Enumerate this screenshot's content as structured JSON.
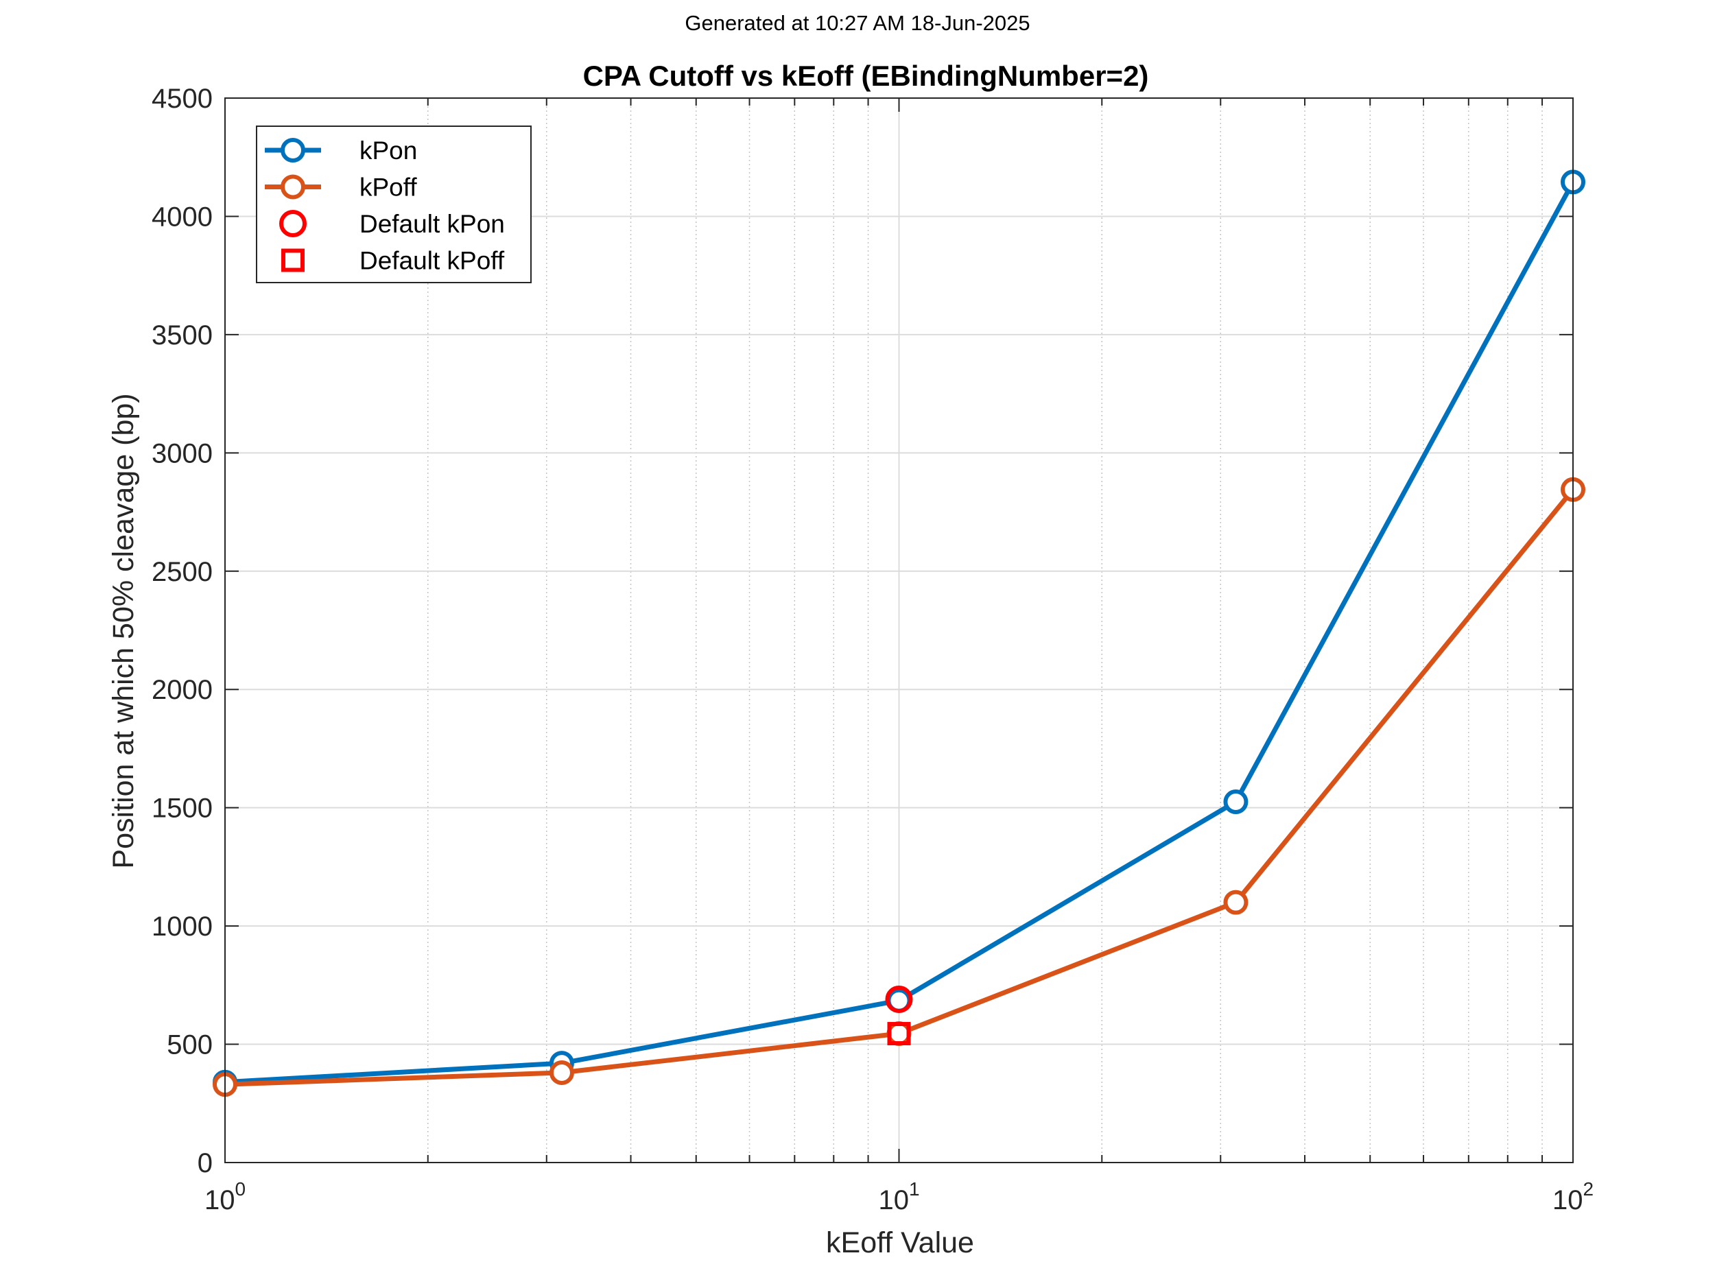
{
  "header": {
    "generated_text": "Generated at 10:27 AM 18-Jun-2025"
  },
  "chart_data": {
    "type": "line",
    "title": "CPA Cutoff vs kEoff (EBindingNumber=2)",
    "xlabel": "kEoff Value",
    "ylabel": "Position at which 50% cleavage (bp)",
    "xscale": "log",
    "xlim": [
      1,
      100
    ],
    "ylim": [
      0,
      4500
    ],
    "grid": true,
    "legend_position": "top-left",
    "x_ticks": [
      {
        "base": "10",
        "exp": "0"
      },
      {
        "base": "10",
        "exp": "1"
      },
      {
        "base": "10",
        "exp": "2"
      }
    ],
    "y_ticks": [
      "0",
      "500",
      "1000",
      "1500",
      "2000",
      "2500",
      "3000",
      "3500",
      "4000",
      "4500"
    ],
    "x": [
      1,
      3.16,
      10,
      31.6,
      100
    ],
    "series": [
      {
        "name": "kPon",
        "values": [
          340,
          420,
          685,
          1525,
          4145
        ],
        "color": "#0072BD",
        "marker": "circle"
      },
      {
        "name": "kPoff",
        "values": [
          330,
          380,
          545,
          1100,
          2845
        ],
        "color": "#D95319",
        "marker": "circle"
      }
    ],
    "highlights": [
      {
        "name": "Default kPon",
        "x": 10,
        "y": 690,
        "color": "#FF0000",
        "marker": "circle"
      },
      {
        "name": "Default kPoff",
        "x": 10,
        "y": 545,
        "color": "#FF0000",
        "marker": "square"
      }
    ]
  }
}
